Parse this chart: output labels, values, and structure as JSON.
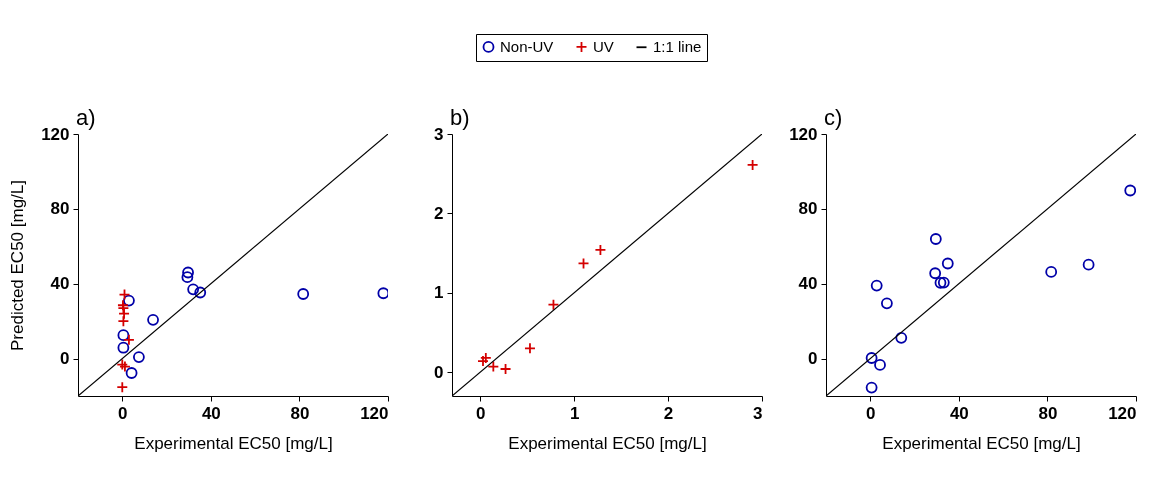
{
  "chart_data": [
    {
      "type": "scatter",
      "title": "a)",
      "xlabel": "Experimental EC50 [mg/L]",
      "ylabel": "Predicted EC50 [mg/L]",
      "xlim": [
        -20,
        120
      ],
      "ylim": [
        -20,
        120
      ],
      "xticks": [
        0,
        40,
        80,
        120
      ],
      "yticks": [
        0,
        40,
        80,
        120
      ],
      "grid": false,
      "legend": "top",
      "series": [
        {
          "name": "Non-UV",
          "type": "scatter",
          "marker": "circle",
          "color": "#0000a8",
          "x": [
            3,
            29.7,
            29.4,
            32,
            35.2,
            13.9,
            0.5,
            0.5,
            7.5,
            4.2,
            81.7,
            117.9
          ],
          "values": [
            31,
            46,
            43.5,
            37,
            35.3,
            20.7,
            12.5,
            5.8,
            0.8,
            -7.7,
            34.5,
            34.9
          ]
        },
        {
          "name": "UV",
          "type": "scatter",
          "marker": "cross",
          "color": "#d40000",
          "x": [
            1,
            0.3,
            0.5,
            0.8,
            0.5,
            3,
            0,
            1.2,
            0
          ],
          "values": [
            34.2,
            28.5,
            27,
            24,
            20,
            10,
            -3.2,
            -4.3,
            -15.3
          ]
        },
        {
          "name": "1:1 line",
          "type": "line",
          "color": "#000000",
          "x": [
            -20,
            120
          ],
          "values": [
            -20,
            120
          ]
        }
      ]
    },
    {
      "type": "scatter",
      "title": "b)",
      "xlabel": "Experimental EC50 [mg/L]",
      "xlim": [
        -0.3,
        3
      ],
      "ylim": [
        -0.3,
        3
      ],
      "xticks": [
        0,
        1,
        2,
        3
      ],
      "yticks": [
        0,
        1,
        2,
        3
      ],
      "grid": false,
      "series": [
        {
          "name": "UV",
          "type": "scatter",
          "marker": "cross",
          "color": "#d40000",
          "x": [
            0.03,
            0.06,
            0.14,
            0.27,
            0.53,
            0.78,
            1.1,
            1.28,
            2.9
          ],
          "values": [
            0.14,
            0.18,
            0.07,
            0.04,
            0.3,
            0.85,
            1.37,
            1.54,
            2.61
          ]
        },
        {
          "name": "1:1 line",
          "type": "line",
          "color": "#000000",
          "x": [
            -0.3,
            3
          ],
          "values": [
            -0.3,
            3
          ]
        }
      ]
    },
    {
      "type": "scatter",
      "title": "c)",
      "xlabel": "Experimental EC50 [mg/L]",
      "xlim": [
        -20,
        120
      ],
      "ylim": [
        -20,
        120
      ],
      "xticks": [
        0,
        40,
        80,
        120
      ],
      "yticks": [
        0,
        40,
        80,
        120
      ],
      "grid": false,
      "series": [
        {
          "name": "Non-UV",
          "type": "scatter",
          "marker": "circle",
          "color": "#0000a8",
          "x": [
            0.6,
            0.6,
            4.4,
            14,
            2.9,
            7.5,
            29.6,
            29.3,
            31.7,
            33.2,
            35,
            81.7,
            98.6,
            117.4
          ],
          "values": [
            -15.5,
            0.3,
            -3.4,
            11.1,
            39,
            29.5,
            63.9,
            45.6,
            40.5,
            40.6,
            50.8,
            46.3,
            50.2,
            89.8
          ]
        },
        {
          "name": "1:1 line",
          "type": "line",
          "color": "#000000",
          "x": [
            -20,
            120
          ],
          "values": [
            -20,
            120
          ]
        }
      ]
    }
  ]
}
